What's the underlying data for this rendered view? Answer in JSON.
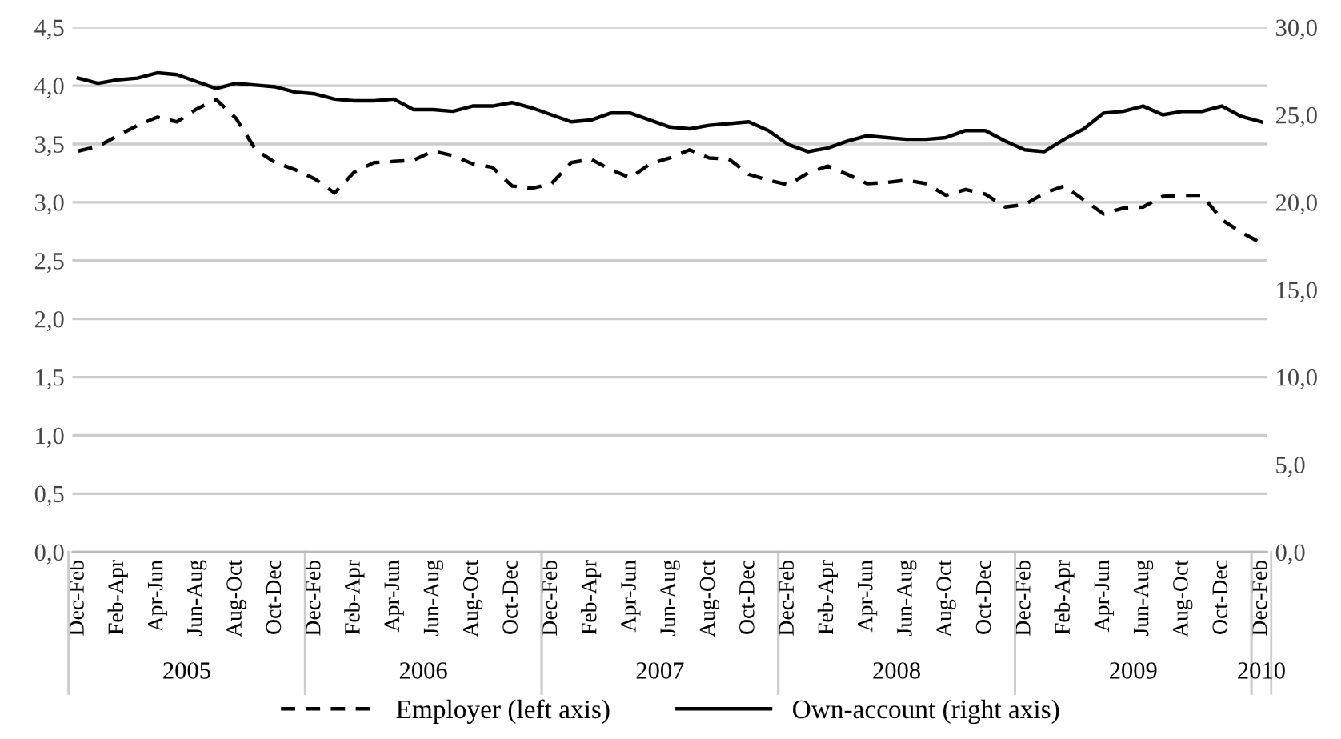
{
  "chart_data": {
    "type": "line",
    "categories": [
      "Dec-Feb",
      null,
      "Feb-Apr",
      null,
      "Apr-Jun",
      null,
      "Jun-Aug",
      null,
      "Aug-Oct",
      null,
      "Oct-Dec",
      null,
      "Dec-Feb",
      null,
      "Feb-Apr",
      null,
      "Apr-Jun",
      null,
      "Jun-Aug",
      null,
      "Aug-Oct",
      null,
      "Oct-Dec",
      null,
      "Dec-Feb",
      null,
      "Feb-Apr",
      null,
      "Apr-Jun",
      null,
      "Jun-Aug",
      null,
      "Aug-Oct",
      null,
      "Oct-Dec",
      null,
      "Dec-Feb",
      null,
      "Feb-Apr",
      null,
      "Apr-Jun",
      null,
      "Jun-Aug",
      null,
      "Aug-Oct",
      null,
      "Oct-Dec",
      null,
      "Dec-Feb",
      null,
      "Feb-Apr",
      null,
      "Apr-Jun",
      null,
      "Jun-Aug",
      null,
      "Aug-Oct",
      null,
      "Oct-Dec",
      null,
      "Dec-Feb"
    ],
    "series": [
      {
        "name": "Employer (left axis)",
        "color": "#000000",
        "line_style": "dashed",
        "values": [
          3.44,
          3.48,
          3.57,
          3.66,
          3.73,
          3.69,
          3.8,
          3.88,
          3.72,
          3.45,
          3.34,
          3.28,
          3.2,
          3.08,
          3.26,
          3.34,
          3.35,
          3.36,
          3.44,
          3.4,
          3.33,
          3.3,
          3.14,
          3.12,
          3.16,
          3.34,
          3.37,
          3.28,
          3.21,
          3.33,
          3.38,
          3.45,
          3.38,
          3.37,
          3.24,
          3.19,
          3.15,
          3.25,
          3.31,
          3.24,
          3.16,
          3.17,
          3.19,
          3.16,
          3.06,
          3.11,
          3.07,
          2.96,
          2.98,
          3.08,
          3.14,
          3.02,
          2.9,
          2.95,
          2.96,
          3.05,
          3.06,
          3.06,
          2.85,
          2.74,
          2.65
        ]
      },
      {
        "name": "Own-account (right axis)",
        "color": "#000000",
        "line_style": "solid",
        "axis": "y2",
        "values": [
          27.1,
          26.8,
          27.0,
          27.1,
          27.4,
          27.3,
          26.9,
          26.5,
          26.8,
          26.7,
          26.6,
          26.3,
          26.2,
          25.9,
          25.8,
          25.8,
          25.9,
          25.3,
          25.3,
          25.2,
          25.5,
          25.5,
          25.7,
          25.4,
          25.0,
          24.6,
          24.7,
          25.1,
          25.1,
          24.7,
          24.3,
          24.2,
          24.4,
          24.5,
          24.6,
          24.1,
          23.3,
          22.9,
          23.1,
          23.5,
          23.8,
          23.7,
          23.6,
          23.6,
          23.7,
          24.1,
          24.1,
          23.5,
          23.0,
          22.9,
          23.6,
          24.2,
          25.1,
          25.2,
          25.5,
          25.0,
          25.2,
          25.2,
          25.5,
          24.9,
          24.6
        ]
      }
    ],
    "ylim": [
      0,
      4.5
    ],
    "yticks": [
      {
        "value": 0,
        "label": "0,0"
      },
      {
        "value": 0.5,
        "label": "0,5"
      },
      {
        "value": 1,
        "label": "1,0"
      },
      {
        "value": 1.5,
        "label": "1,5"
      },
      {
        "value": 2,
        "label": "2,0"
      },
      {
        "value": 2.5,
        "label": "2,5"
      },
      {
        "value": 3,
        "label": "3,0"
      },
      {
        "value": 3.5,
        "label": "3,5"
      },
      {
        "value": 4,
        "label": "4,0"
      },
      {
        "value": 4.5,
        "label": "4,5"
      }
    ],
    "y2lim": [
      0,
      30
    ],
    "y2ticks": [
      {
        "value": 0,
        "label": "0,0"
      },
      {
        "value": 5,
        "label": "5,0"
      },
      {
        "value": 10,
        "label": "10,0"
      },
      {
        "value": 15,
        "label": "15,0"
      },
      {
        "value": 20,
        "label": "20,0"
      },
      {
        "value": 25,
        "label": "25,0"
      },
      {
        "value": 30,
        "label": "30,0"
      }
    ],
    "annotations": [
      "2005",
      "2006",
      "2007",
      "2008",
      "2009",
      "2010"
    ],
    "grid": "y",
    "legend": "bottom"
  }
}
